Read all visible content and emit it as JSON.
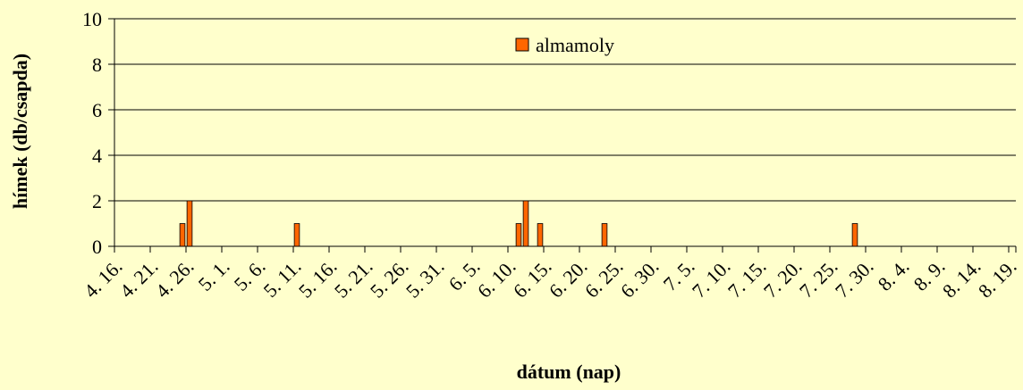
{
  "chart_data": {
    "type": "bar",
    "title": "",
    "xlabel": "dátum (nap)",
    "ylabel": "hímek (db/csapda)",
    "ylim": [
      0,
      10
    ],
    "yticks": [
      0,
      2,
      4,
      6,
      8,
      10
    ],
    "grid": true,
    "legend_position": "top-center",
    "x_tick_labels": [
      "4. 16.",
      "4. 21.",
      "4. 26.",
      "5. 1.",
      "5. 6.",
      "5. 11.",
      "5. 16.",
      "5. 21.",
      "5. 26.",
      "5. 31.",
      "6. 5.",
      "6. 10.",
      "6. 15.",
      "6. 20.",
      "6. 25.",
      "6. 30.",
      "7. 5.",
      "7. 10.",
      "7. 15.",
      "7. 20.",
      "7. 25.",
      "7. 30.",
      "8. 4.",
      "8. 9.",
      "8. 14.",
      "8. 19."
    ],
    "x_range": [
      "4. 16.",
      "8. 19."
    ],
    "series": [
      {
        "name": "almamoly",
        "color": "#FF6600",
        "points": [
          {
            "x": "4. 25.",
            "y": 1
          },
          {
            "x": "4. 26.",
            "y": 2
          },
          {
            "x": "5. 11.",
            "y": 1
          },
          {
            "x": "6. 11.",
            "y": 1
          },
          {
            "x": "6. 12.",
            "y": 2
          },
          {
            "x": "6. 14.",
            "y": 1
          },
          {
            "x": "6. 23.",
            "y": 1
          },
          {
            "x": "7. 28.",
            "y": 1
          }
        ]
      }
    ]
  }
}
